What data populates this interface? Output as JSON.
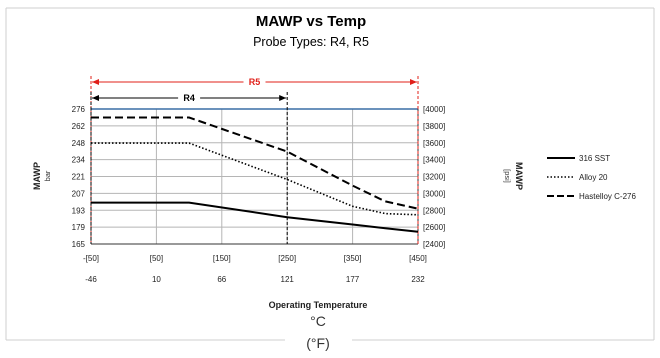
{
  "chart_data": {
    "type": "line",
    "title": "MAWP vs Temp",
    "subtitle": "Probe Types: R4, R5",
    "x": [
      -50,
      100,
      250,
      350,
      400,
      450
    ],
    "x_axis": {
      "label": "Operating Temperature",
      "unit_c": "°C",
      "unit_f": "(°F)",
      "range": [
        -50,
        450
      ],
      "ticks_f": [
        "-[50]",
        "[50]",
        "[150]",
        "[250]",
        "[350]",
        "[450]"
      ],
      "ticks_c": [
        "-46",
        "10",
        "66",
        "121",
        "177",
        "232"
      ]
    },
    "y_left": {
      "label": "MAWP",
      "unit": "bar",
      "range": [
        165,
        276
      ],
      "ticks": [
        "165",
        "179",
        "193",
        "207",
        "221",
        "234",
        "248",
        "262",
        "276"
      ]
    },
    "y_right": {
      "label": "MAWP",
      "unit": "[psi]",
      "ticks": [
        "[2400]",
        "[2600]",
        "[2800]",
        "[3000]",
        "[3200]",
        "[3400]",
        "[3600]",
        "[3800]",
        "[4000]"
      ]
    },
    "series": [
      {
        "name": "316 SST",
        "style": "solid",
        "values": [
          199,
          199,
          187,
          181,
          178,
          175
        ]
      },
      {
        "name": "Alloy 20",
        "style": "dotted",
        "values": [
          248,
          248,
          218,
          196,
          190,
          189
        ]
      },
      {
        "name": "Hastelloy C-276",
        "style": "dashed",
        "values": [
          269,
          269,
          241,
          213,
          200,
          194
        ]
      }
    ],
    "annotations": [
      {
        "label": "R5",
        "from": -50,
        "to": 450,
        "color": "#e0201a"
      },
      {
        "label": "R4",
        "from": -50,
        "to": 250,
        "color": "#000000"
      }
    ],
    "grid": true,
    "legend": "right"
  }
}
